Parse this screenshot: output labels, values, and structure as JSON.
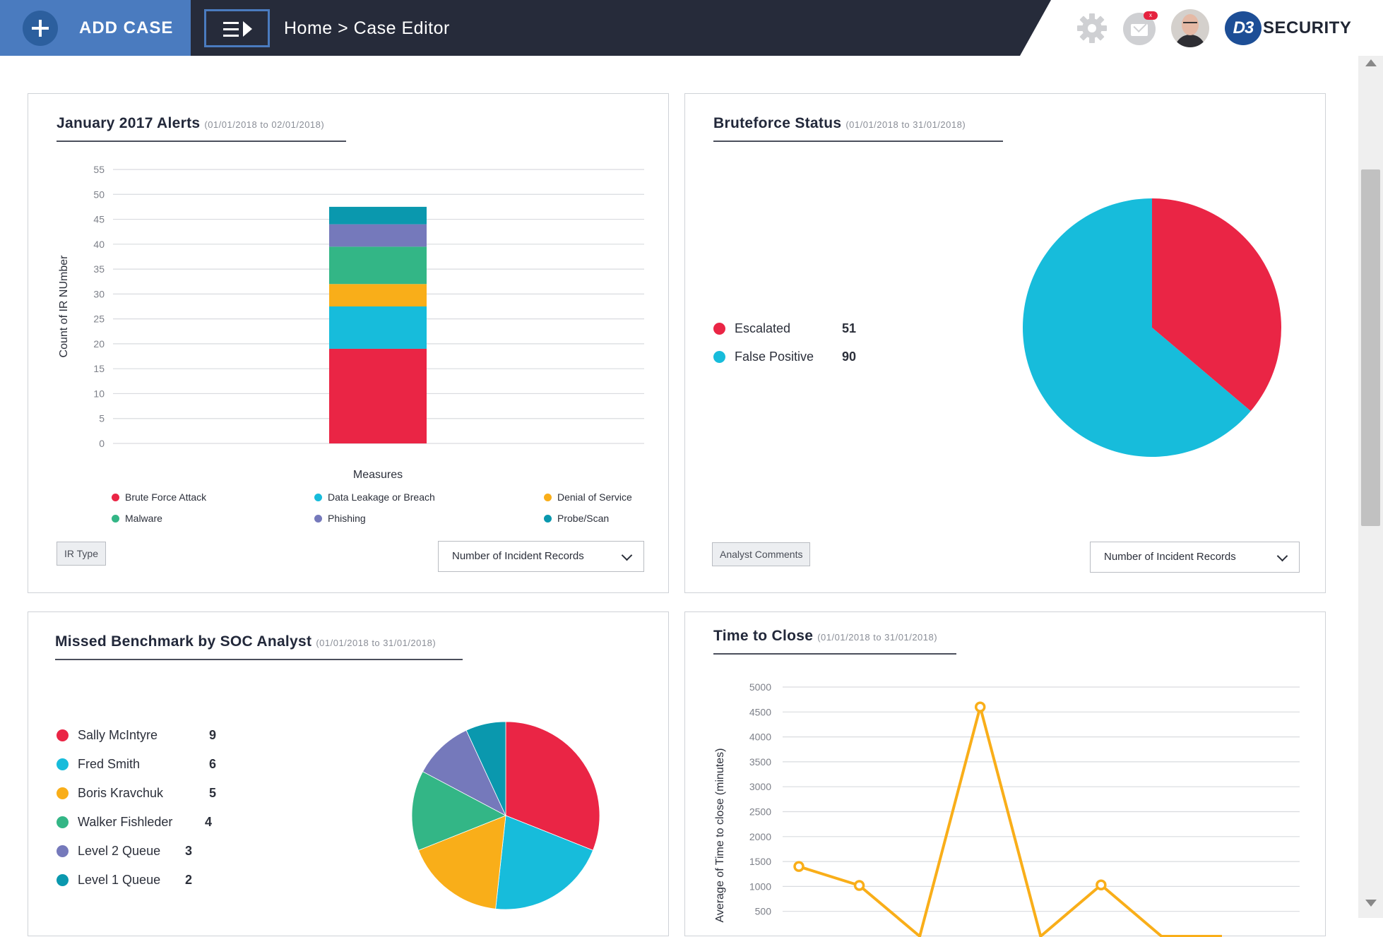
{
  "header": {
    "add_case_label": "ADD CASE",
    "breadcrumb": "Home > Case Editor",
    "mail_badge": "x",
    "logo_badge": "D3",
    "logo_text": "SECURITY"
  },
  "panels": {
    "alerts": {
      "title": "January 2017 Alerts",
      "range": "(01/01/2018 to 02/01/2018)",
      "ir_type_button": "IR Type",
      "select_value": "Number of Incident Records"
    },
    "bruteforce": {
      "title": "Bruteforce Status",
      "range": "(01/01/2018 to 31/01/2018)",
      "analyst_button": "Analyst Comments",
      "select_value": "Number of Incident Records"
    },
    "benchmark": {
      "title": "Missed Benchmark by SOC Analyst",
      "range": "(01/01/2018 to 31/01/2018)"
    },
    "time_to_close": {
      "title": "Time to Close",
      "range": "(01/01/2018 to 31/01/2018)"
    }
  },
  "chart_data": [
    {
      "type": "bar",
      "stacked": true,
      "title": "January 2017 Alerts",
      "xlabel": "Measures",
      "ylabel": "Count of IR NUmber",
      "ylim": [
        0,
        55
      ],
      "yticks": [
        0,
        5,
        10,
        15,
        20,
        25,
        30,
        35,
        40,
        45,
        50,
        55
      ],
      "grid": true,
      "legend_position": "bottom",
      "series": [
        {
          "name": "Brute Force Attack",
          "value": 19,
          "color": "#ea2545"
        },
        {
          "name": "Data Leakage or Breach",
          "value": 8.5,
          "color": "#17bcdb"
        },
        {
          "name": "Denial of Service",
          "value": 4.5,
          "color": "#f9ae19"
        },
        {
          "name": "Malware",
          "value": 7.5,
          "color": "#33b686"
        },
        {
          "name": "Phishing",
          "value": 4.5,
          "color": "#7579bb"
        },
        {
          "name": "Probe/Scan",
          "value": 3.5,
          "color": "#0a98ae"
        }
      ]
    },
    {
      "type": "pie",
      "title": "Bruteforce Status",
      "legend_position": "left",
      "slices": [
        {
          "name": "Escalated",
          "value": 51,
          "color": "#ea2545"
        },
        {
          "name": "False Positive",
          "value": 90,
          "color": "#17bcdb"
        }
      ]
    },
    {
      "type": "pie",
      "title": "Missed Benchmark by SOC Analyst",
      "legend_position": "left",
      "slices": [
        {
          "name": "Sally McIntyre",
          "value": 9,
          "color": "#ea2545"
        },
        {
          "name": "Fred Smith",
          "value": 6,
          "color": "#17bcdb"
        },
        {
          "name": "Boris Kravchuk",
          "value": 5,
          "color": "#f9ae19"
        },
        {
          "name": "Walker Fishleder",
          "value": 4,
          "color": "#33b686"
        },
        {
          "name": "Level 2 Queue",
          "value": 3,
          "color": "#7579bb"
        },
        {
          "name": "Level 1 Queue",
          "value": 2,
          "color": "#0a98ae"
        }
      ]
    },
    {
      "type": "line",
      "title": "Time to Close",
      "ylabel": "Average of Time to close (minutes)",
      "ylim": [
        0,
        5000
      ],
      "yticks": [
        500,
        1000,
        1500,
        2000,
        2500,
        3000,
        3500,
        4000,
        4500,
        5000
      ],
      "grid": true,
      "color": "#f9ae19",
      "x": [
        1,
        2,
        3,
        4,
        5,
        6,
        7,
        8
      ],
      "y": [
        1400,
        1020,
        0,
        4600,
        0,
        1030,
        0,
        0
      ]
    }
  ]
}
